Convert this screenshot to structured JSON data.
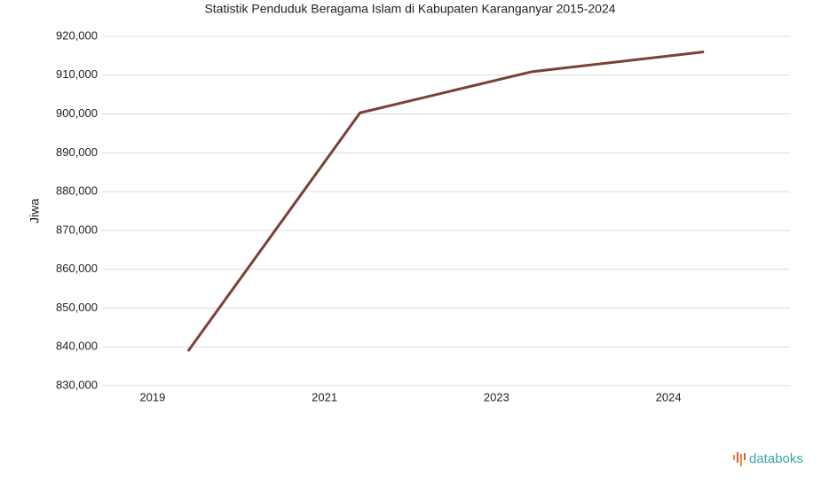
{
  "chart_data": {
    "type": "line",
    "title": "Statistik Penduduk Beragama Islam di Kabupaten Karanganyar 2015-2024",
    "y_label": "Jiwa",
    "categories": [
      "2019",
      "2021",
      "2023",
      "2024"
    ],
    "series": [
      {
        "name": "Jiwa",
        "color": "#7b3f35",
        "values": [
          838900,
          900300,
          910900,
          916000
        ]
      }
    ],
    "ylim": [
      830000,
      920000
    ],
    "yticks": [
      {
        "value": 830000,
        "label": "830,000"
      },
      {
        "value": 840000,
        "label": "840,000"
      },
      {
        "value": 850000,
        "label": "850,000"
      },
      {
        "value": 860000,
        "label": "860,000"
      },
      {
        "value": 870000,
        "label": "870,000"
      },
      {
        "value": 880000,
        "label": "880,000"
      },
      {
        "value": 890000,
        "label": "890,000"
      },
      {
        "value": 900000,
        "label": "900,000"
      },
      {
        "value": 910000,
        "label": "910,000"
      },
      {
        "value": 920000,
        "label": "920,000"
      }
    ],
    "grid": true,
    "watermark": "databoks"
  }
}
